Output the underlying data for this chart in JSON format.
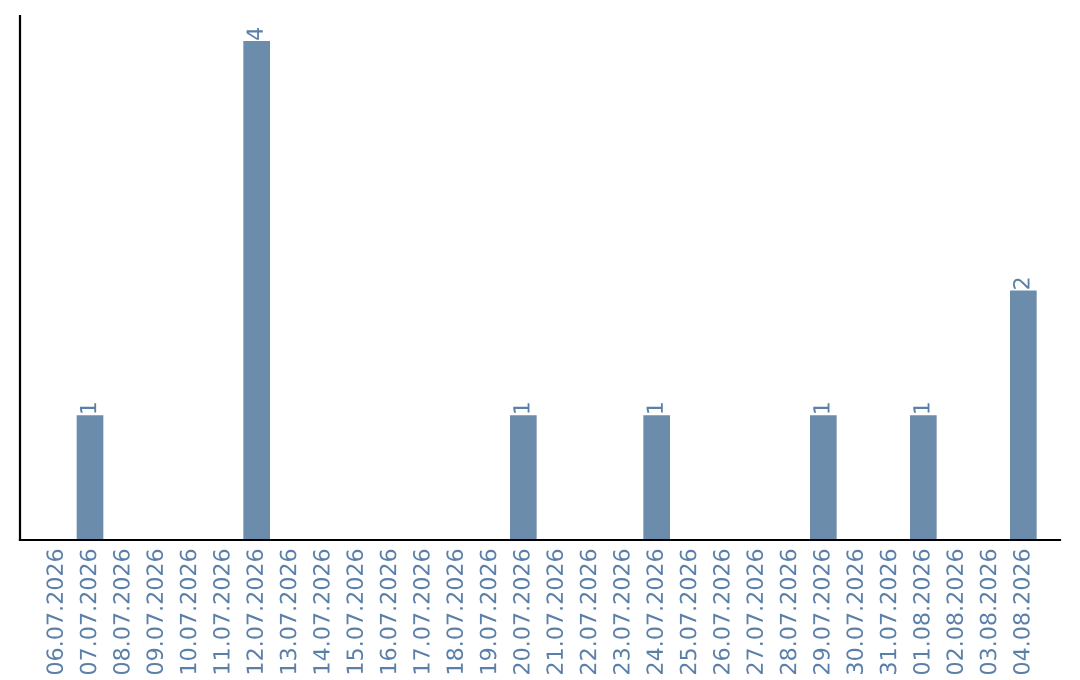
{
  "chart_data": {
    "type": "bar",
    "categories": [
      "06.07.2026",
      "07.07.2026",
      "08.07.2026",
      "09.07.2026",
      "10.07.2026",
      "11.07.2026",
      "12.07.2026",
      "13.07.2026",
      "14.07.2026",
      "15.07.2026",
      "16.07.2026",
      "17.07.2026",
      "18.07.2026",
      "19.07.2026",
      "20.07.2026",
      "21.07.2026",
      "22.07.2026",
      "23.07.2026",
      "24.07.2026",
      "25.07.2026",
      "26.07.2026",
      "27.07.2026",
      "28.07.2026",
      "29.07.2026",
      "30.07.2026",
      "31.07.2026",
      "01.08.2026",
      "02.08.2026",
      "03.08.2026",
      "04.08.2026"
    ],
    "values": [
      0,
      1,
      0,
      0,
      0,
      0,
      4,
      0,
      0,
      0,
      0,
      0,
      0,
      0,
      1,
      0,
      0,
      0,
      1,
      0,
      0,
      0,
      0,
      1,
      0,
      0,
      1,
      0,
      0,
      2
    ],
    "value_labels": [
      null,
      "1",
      null,
      null,
      null,
      null,
      "4",
      null,
      null,
      null,
      null,
      null,
      null,
      null,
      "1",
      null,
      null,
      null,
      "1",
      null,
      null,
      null,
      null,
      "1",
      null,
      null,
      "1",
      null,
      null,
      "2"
    ],
    "color": "#6b8cab",
    "tick_labels": "x",
    "grid": false,
    "legend": false
  }
}
